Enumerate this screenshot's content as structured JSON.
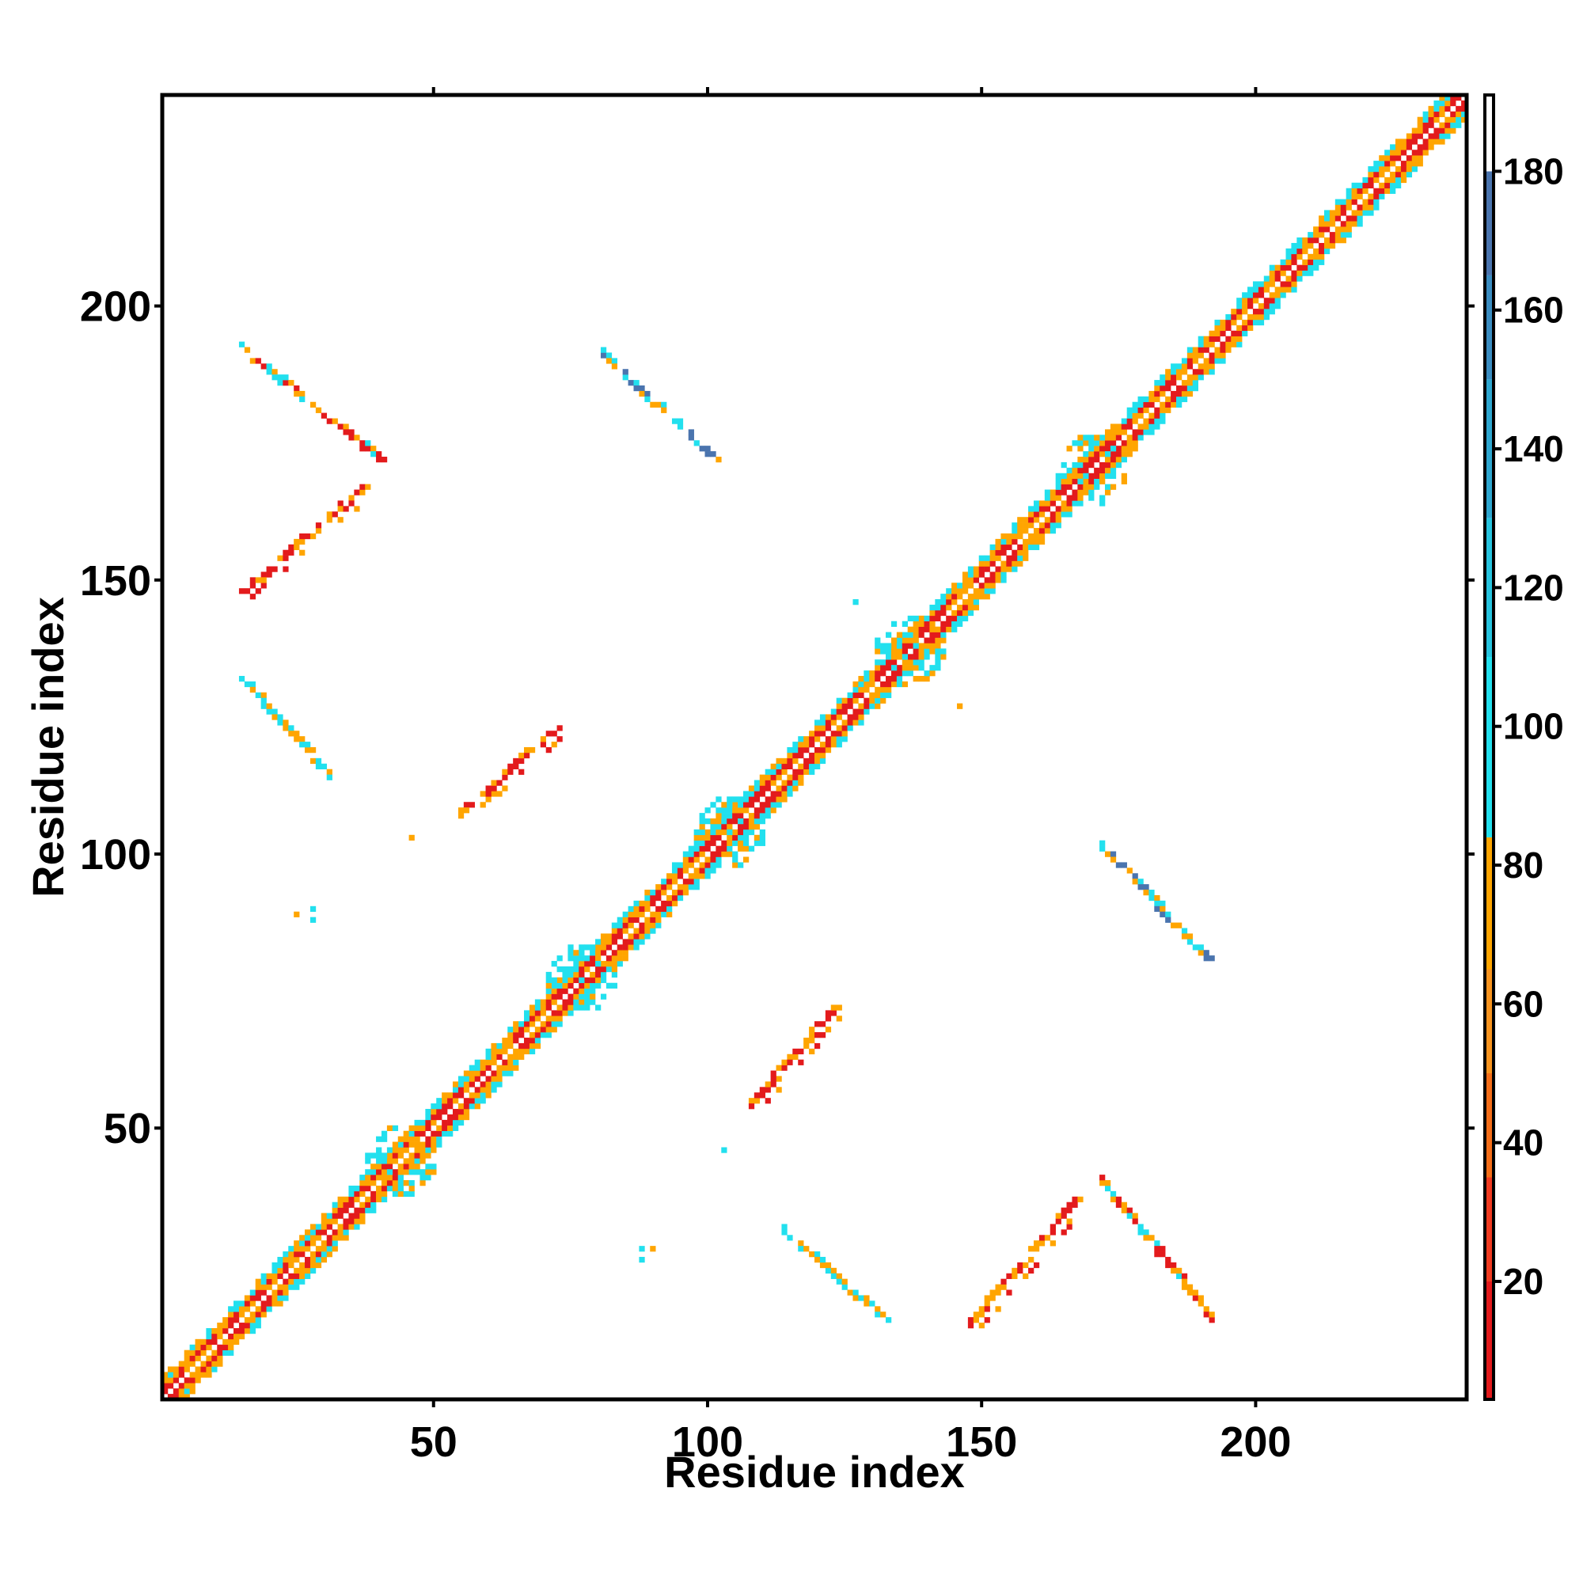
{
  "chart_data": {
    "type": "heatmap",
    "title": "",
    "xlabel": "Residue index",
    "ylabel": "Residue index",
    "xlim": [
      0.5,
      238.5
    ],
    "ylim": [
      0.5,
      238.5
    ],
    "x_ticks": [
      50,
      100,
      150,
      200
    ],
    "y_ticks": [
      50,
      100,
      150,
      200
    ],
    "x_tick_labels": [
      "50",
      "100",
      "150",
      "200"
    ],
    "y_tick_labels": [
      "50",
      "100",
      "150",
      "200"
    ],
    "grid": false,
    "legend": "none",
    "colorbar": {
      "placement": "right",
      "range": [
        3,
        191
      ],
      "ticks": [
        20,
        40,
        60,
        80,
        100,
        120,
        140,
        160,
        180
      ],
      "tick_labels": [
        "20",
        "40",
        "60",
        "80",
        "100",
        "120",
        "140",
        "160",
        "180"
      ],
      "segments": [
        {
          "from": 3,
          "to": 20,
          "color": "#e31a1c"
        },
        {
          "from": 20,
          "to": 35,
          "color": "#f03b20"
        },
        {
          "from": 35,
          "to": 50,
          "color": "#f46d18"
        },
        {
          "from": 50,
          "to": 65,
          "color": "#f7931e"
        },
        {
          "from": 65,
          "to": 84,
          "color": "#ffa500"
        },
        {
          "from": 84,
          "to": 110,
          "color": "#22e0ee"
        },
        {
          "from": 110,
          "to": 130,
          "color": "#27c4df"
        },
        {
          "from": 130,
          "to": 150,
          "color": "#2ea6cf"
        },
        {
          "from": 150,
          "to": 165,
          "color": "#3a8cc0"
        },
        {
          "from": 165,
          "to": 180,
          "color": "#4a74ae"
        },
        {
          "from": 180,
          "to": 191,
          "color": "#ffffff"
        }
      ]
    },
    "colors": {
      "red": "#e31a1c",
      "orange_red": "#f46d18",
      "orange": "#ffa500",
      "cyan": "#22e0ee",
      "blue": "#4a74ae"
    },
    "series": [
      {
        "description": "main diagonal band (residue i vs i, with contacts i±1..i±4)",
        "diagonal": true,
        "x_range": [
          1,
          238
        ]
      }
    ],
    "contact_segments": [
      {
        "x": [
          15,
          37
        ],
        "y": [
          148,
          167
        ],
        "pattern": "parallel",
        "color_mix": [
          "orange",
          "red"
        ]
      },
      {
        "x": [
          15,
          40
        ],
        "y": [
          192,
          172
        ],
        "pattern": "antiparallel",
        "color_mix": [
          "orange",
          "red",
          "cyan"
        ]
      },
      {
        "x": [
          15,
          31
        ],
        "y": [
          132,
          114
        ],
        "pattern": "antiparallel",
        "color_mix": [
          "cyan",
          "orange"
        ]
      },
      {
        "x": [
          55,
          72
        ],
        "y": [
          108,
          123
        ],
        "pattern": "parallel",
        "color_mix": [
          "red",
          "orange"
        ]
      },
      {
        "x": [
          81,
          101
        ],
        "y": [
          191,
          172
        ],
        "pattern": "antiparallel",
        "color_mix": [
          "cyan",
          "orange",
          "blue"
        ]
      },
      {
        "x": [
          108,
          123
        ],
        "y": [
          55,
          72
        ],
        "pattern": "parallel",
        "color_mix": [
          "red",
          "orange"
        ]
      },
      {
        "x": [
          114,
          132
        ],
        "y": [
          31,
          15
        ],
        "pattern": "antiparallel",
        "color_mix": [
          "cyan",
          "orange"
        ]
      },
      {
        "x": [
          148,
          167
        ],
        "y": [
          15,
          37
        ],
        "pattern": "parallel",
        "color_mix": [
          "orange",
          "red"
        ]
      },
      {
        "x": [
          172,
          192
        ],
        "y": [
          40,
          15
        ],
        "pattern": "antiparallel",
        "color_mix": [
          "orange",
          "red",
          "cyan"
        ]
      },
      {
        "x": [
          172,
          191
        ],
        "y": [
          101,
          81
        ],
        "pattern": "antiparallel",
        "color_mix": [
          "cyan",
          "orange",
          "blue"
        ]
      }
    ],
    "hubs": [
      {
        "x": 44,
        "y": 44
      },
      {
        "x": 77,
        "y": 77
      },
      {
        "x": 104,
        "y": 104
      },
      {
        "x": 137,
        "y": 137
      },
      {
        "x": 170,
        "y": 170
      }
    ],
    "isolated_points": [
      {
        "x": 25,
        "y": 89
      },
      {
        "x": 28,
        "y": 90
      },
      {
        "x": 28,
        "y": 88
      },
      {
        "x": 46,
        "y": 103
      },
      {
        "x": 103,
        "y": 46
      },
      {
        "x": 88,
        "y": 26
      },
      {
        "x": 90,
        "y": 28
      },
      {
        "x": 88,
        "y": 28
      },
      {
        "x": 127,
        "y": 146
      },
      {
        "x": 146,
        "y": 127
      }
    ]
  }
}
